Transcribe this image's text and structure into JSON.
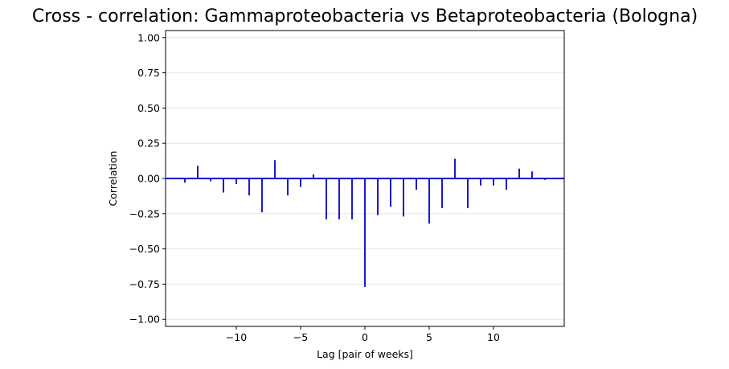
{
  "chart_data": {
    "type": "bar",
    "title": "Cross - correlation: Gammaproteobacteria vs Betaproteobacteria (Bologna)",
    "xlabel": "Lag [pair of weeks]",
    "ylabel": "Correlation",
    "xlim": [
      -15.5,
      15.5
    ],
    "ylim": [
      -1.05,
      1.05
    ],
    "xticks": [
      {
        "value": -10,
        "label": "−10"
      },
      {
        "value": -5,
        "label": "−5"
      },
      {
        "value": 0,
        "label": "0"
      },
      {
        "value": 5,
        "label": "5"
      },
      {
        "value": 10,
        "label": "10"
      }
    ],
    "yticks": [
      {
        "value": 1.0,
        "label": "1.00"
      },
      {
        "value": 0.75,
        "label": "0.75"
      },
      {
        "value": 0.5,
        "label": "0.50"
      },
      {
        "value": 0.25,
        "label": "0.25"
      },
      {
        "value": 0.0,
        "label": "0.00"
      },
      {
        "value": -0.25,
        "label": "−0.25"
      },
      {
        "value": -0.5,
        "label": "−0.50"
      },
      {
        "value": -0.75,
        "label": "−0.75"
      },
      {
        "value": -1.0,
        "label": "−1.00"
      }
    ],
    "grid": "y",
    "color": "#0000cc",
    "x": [
      -14,
      -13,
      -12,
      -11,
      -10,
      -9,
      -8,
      -7,
      -6,
      -5,
      -4,
      -3,
      -2,
      -1,
      0,
      1,
      2,
      3,
      4,
      5,
      6,
      7,
      8,
      9,
      10,
      11,
      12,
      13,
      14
    ],
    "values": [
      -0.03,
      0.09,
      -0.02,
      -0.1,
      -0.04,
      -0.12,
      -0.24,
      0.13,
      -0.12,
      -0.06,
      0.03,
      -0.29,
      -0.29,
      -0.29,
      -0.77,
      -0.26,
      -0.2,
      -0.27,
      -0.08,
      -0.32,
      -0.21,
      0.14,
      -0.21,
      -0.05,
      -0.05,
      -0.08,
      0.07,
      0.05,
      -0.01
    ]
  }
}
